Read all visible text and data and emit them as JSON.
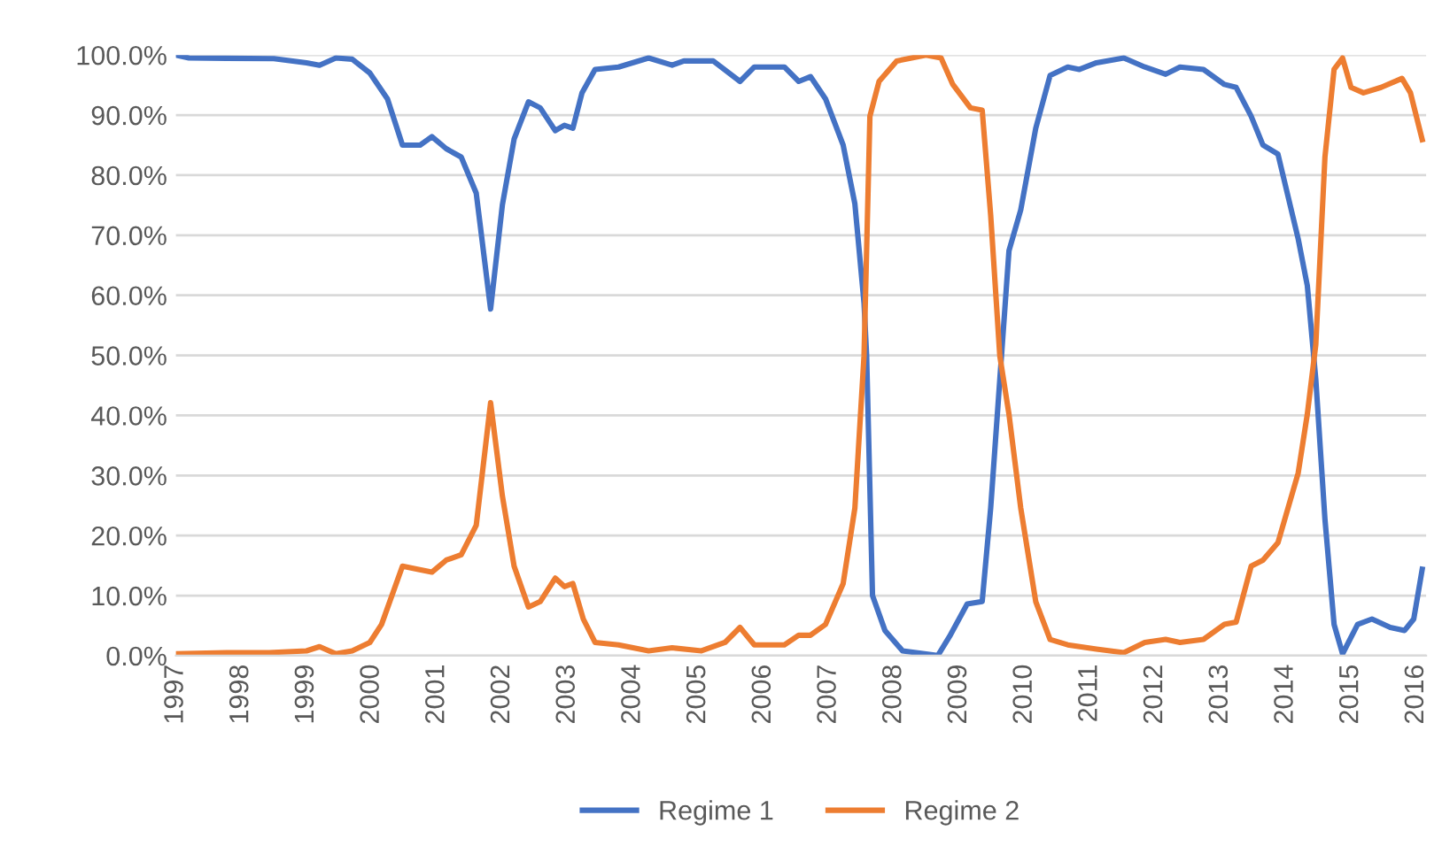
{
  "chart_data": {
    "type": "line",
    "legend": "bottom",
    "grid": "y",
    "marker": "none",
    "line_style": "solid",
    "xlim": [
      1997,
      2016.15
    ],
    "xticks": [
      1997,
      1998,
      1999,
      2000,
      2001,
      2002,
      2003,
      2004,
      2005,
      2006,
      2007,
      2008,
      2009,
      2010,
      2011,
      2012,
      2013,
      2014,
      2015,
      2016
    ],
    "ylim": [
      0,
      100
    ],
    "yticks": [
      {
        "value": 0,
        "label": "0.0%"
      },
      {
        "value": 10,
        "label": "10.0%"
      },
      {
        "value": 20,
        "label": "20.0%"
      },
      {
        "value": 30,
        "label": "30.0%"
      },
      {
        "value": 40,
        "label": "40.0%"
      },
      {
        "value": 50,
        "label": "50.0%"
      },
      {
        "value": 60,
        "label": "60.0%"
      },
      {
        "value": 70,
        "label": "70.0%"
      },
      {
        "value": 80,
        "label": "80.0%"
      },
      {
        "value": 90,
        "label": "90.0%"
      },
      {
        "value": 100,
        "label": "100.0%"
      }
    ],
    "series": [
      {
        "name": "Regime 1",
        "color": "#4472c4",
        "x": [
          1997.0,
          1997.2,
          1998.5,
          1999.0,
          1999.2,
          1999.45,
          1999.7,
          1999.97,
          2000.24,
          2000.47,
          2000.74,
          2000.92,
          2001.14,
          2001.37,
          2001.6,
          2001.82,
          2002.0,
          2002.18,
          2002.4,
          2002.58,
          2002.81,
          2002.95,
          2003.08,
          2003.22,
          2003.42,
          2003.78,
          2004.24,
          2004.6,
          2004.78,
          2005.23,
          2005.64,
          2005.86,
          2006.32,
          2006.54,
          2006.72,
          2006.95,
          2007.22,
          2007.4,
          2007.54,
          2007.58,
          2007.67,
          2007.86,
          2008.13,
          2008.67,
          2008.85,
          2009.12,
          2009.35,
          2009.48,
          2009.62,
          2009.76,
          2009.94,
          2010.17,
          2010.39,
          2010.66,
          2010.84,
          2011.1,
          2011.52,
          2011.84,
          2012.16,
          2012.38,
          2012.74,
          2013.06,
          2013.24,
          2013.47,
          2013.65,
          2013.88,
          2014.19,
          2014.33,
          2014.46,
          2014.6,
          2014.74,
          2014.87,
          2015.1,
          2015.32,
          2015.6,
          2015.82,
          2015.96,
          2016.09
        ],
        "values": [
          100,
          99.5,
          99.4,
          98.7,
          98.3,
          99.5,
          99.3,
          97,
          92.7,
          85,
          85,
          86.4,
          84.4,
          83,
          77,
          57.7,
          75,
          86,
          92.2,
          91.2,
          87.4,
          88.3,
          87.8,
          93.7,
          97.6,
          98,
          99.5,
          98.3,
          99,
          99,
          95.6,
          98,
          98,
          95.6,
          96.4,
          92.7,
          85,
          75.2,
          58.7,
          49.9,
          10,
          4.2,
          0.8,
          0,
          3.2,
          8.6,
          9,
          24.6,
          46,
          67.4,
          74.2,
          87.8,
          96.6,
          98,
          97.6,
          98.7,
          99.5,
          98,
          96.8,
          98,
          97.6,
          95.1,
          94.6,
          89.8,
          85,
          83.5,
          69.4,
          61.6,
          46,
          22.7,
          5.2,
          0.3,
          5.2,
          6.1,
          4.7,
          4.2,
          6.1,
          14.4
        ]
      },
      {
        "name": "Regime 2",
        "color": "#ed7d31",
        "x": [
          1997.0,
          1997.8,
          1998.43,
          1999.0,
          1999.2,
          1999.45,
          1999.7,
          1999.97,
          2000.15,
          2000.47,
          2000.7,
          2000.92,
          2001.14,
          2001.37,
          2001.6,
          2001.82,
          2002.0,
          2002.18,
          2002.4,
          2002.58,
          2002.81,
          2002.95,
          2003.08,
          2003.24,
          2003.42,
          2003.78,
          2004.24,
          2004.6,
          2005.05,
          2005.41,
          2005.64,
          2005.86,
          2006.32,
          2006.54,
          2006.72,
          2006.95,
          2007.22,
          2007.4,
          2007.54,
          2007.63,
          2007.77,
          2008.04,
          2008.49,
          2008.72,
          2008.9,
          2009.17,
          2009.35,
          2009.48,
          2009.62,
          2009.76,
          2009.94,
          2010.17,
          2010.39,
          2010.66,
          2011.1,
          2011.52,
          2011.84,
          2012.16,
          2012.38,
          2012.74,
          2013.06,
          2013.24,
          2013.47,
          2013.65,
          2013.88,
          2014.19,
          2014.33,
          2014.46,
          2014.6,
          2014.74,
          2014.87,
          2015.0,
          2015.19,
          2015.46,
          2015.78,
          2015.91,
          2016.09
        ],
        "values": [
          0.3,
          0.5,
          0.5,
          0.8,
          1.5,
          0.3,
          0.8,
          2.2,
          5.2,
          14.9,
          14.4,
          13.9,
          15.9,
          16.8,
          21.7,
          42.1,
          26.6,
          14.9,
          8.1,
          9,
          12.9,
          11.5,
          12,
          6.1,
          2.2,
          1.8,
          0.8,
          1.3,
          0.8,
          2.2,
          4.7,
          1.8,
          1.8,
          3.4,
          3.4,
          5.2,
          12,
          24.6,
          49.9,
          89.8,
          95.6,
          99,
          100,
          99.5,
          95.1,
          91.2,
          90.8,
          73.3,
          49.9,
          40.2,
          24.6,
          9,
          2.7,
          1.8,
          1.1,
          0.5,
          2.2,
          2.7,
          2.2,
          2.7,
          5.2,
          5.6,
          14.9,
          15.9,
          18.8,
          30.4,
          40.2,
          51.8,
          83,
          97.6,
          99.5,
          94.6,
          93.7,
          94.6,
          96.1,
          93.7,
          85.9
        ]
      }
    ]
  }
}
